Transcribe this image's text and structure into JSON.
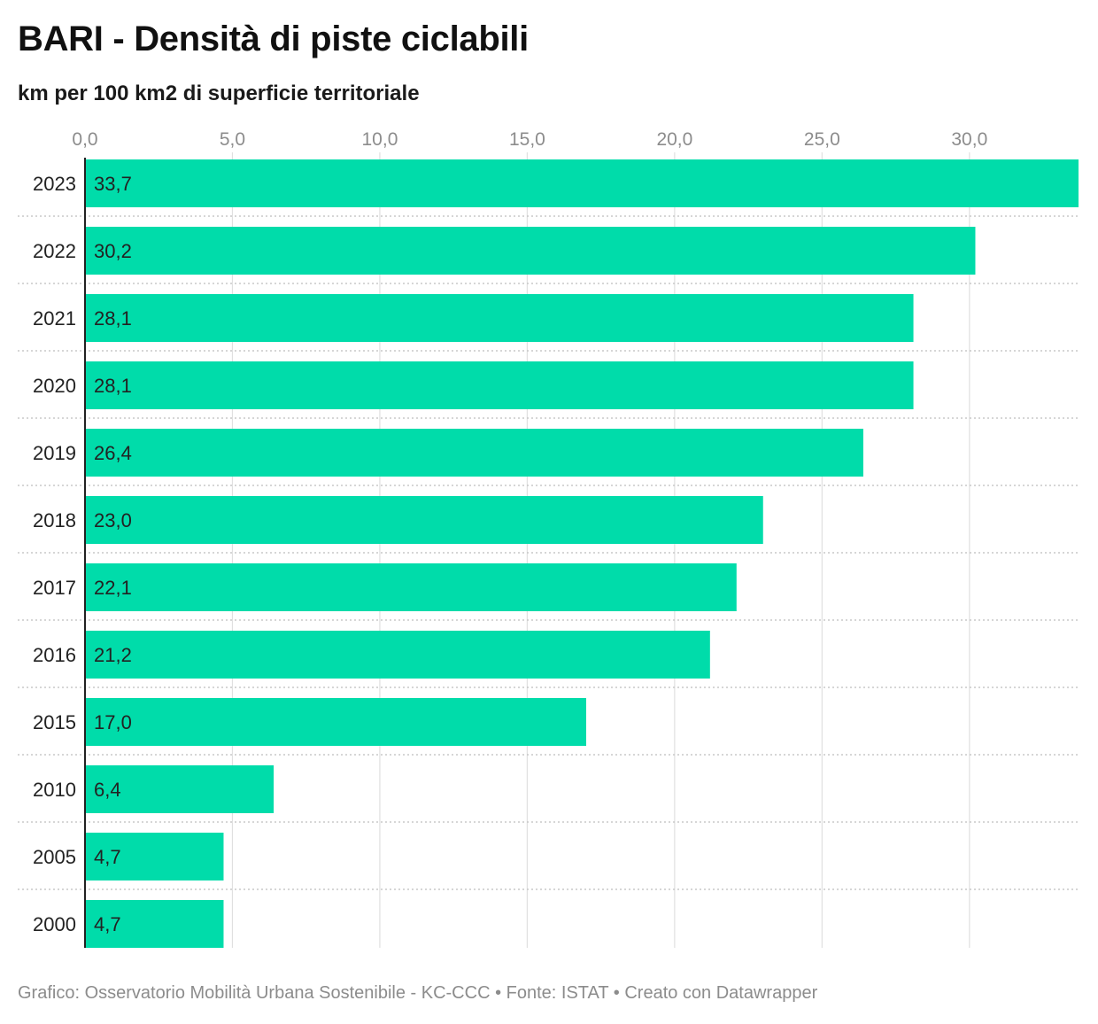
{
  "chart_data": {
    "type": "bar",
    "orientation": "horizontal",
    "title": "BARI - Densità di piste ciclabili",
    "subtitle": "km per 100 km2 di superficie territoriale",
    "categories": [
      "2023",
      "2022",
      "2021",
      "2020",
      "2019",
      "2018",
      "2017",
      "2016",
      "2015",
      "2010",
      "2005",
      "2000"
    ],
    "values": [
      33.7,
      30.2,
      28.1,
      28.1,
      26.4,
      23.0,
      22.1,
      21.2,
      17.0,
      6.4,
      4.7,
      4.7
    ],
    "value_labels": [
      "33,7",
      "30,2",
      "28,1",
      "28,1",
      "26,4",
      "23,0",
      "22,1",
      "21,2",
      "17,0",
      "6,4",
      "4,7",
      "4,7"
    ],
    "x_ticks": [
      0,
      5,
      10,
      15,
      20,
      25,
      30
    ],
    "x_tick_labels": [
      "0,0",
      "5,0",
      "10,0",
      "15,0",
      "20,0",
      "25,0",
      "30,0"
    ],
    "xlim": [
      0,
      33.7
    ],
    "axis_position": "top",
    "grid": true,
    "bar_color": "#00dcaa",
    "gridline_color": "#e0e0e0",
    "footer": "Grafico: Osservatorio Mobilità Urbana Sostenibile - KC-CCC • Fonte: ISTAT • Creato con Datawrapper"
  }
}
